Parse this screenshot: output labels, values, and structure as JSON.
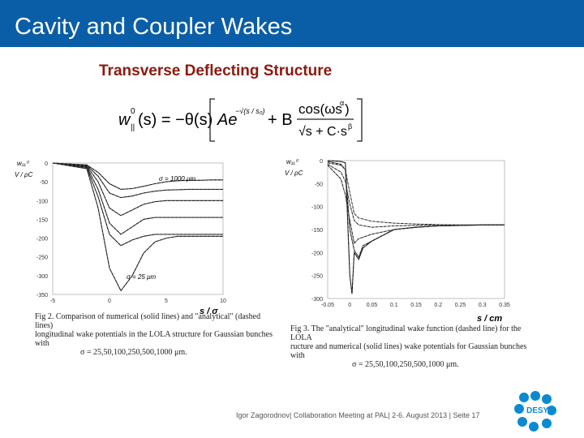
{
  "slide": {
    "title": "Cavity and Coupler Wakes",
    "subtitle": "Transverse Deflecting Structure",
    "formula": {
      "lhs": "w",
      "lhs_sup": "0",
      "lhs_sub": "||",
      "lhs_arg": "(s) = −θ(s)",
      "term1": "Ae",
      "term1_exp": "−√(s / s₀)",
      "plus": "+ B",
      "num": "cos(ωs",
      "num_exp": "α",
      "num_close": ")",
      "den": "√s + C·s",
      "den_exp": "β"
    },
    "footer": "Igor Zagorodnov| Collaboration Meeting at PAL| 2-6. August 2013  |  Seite 17",
    "logo_text": "DESY",
    "colors": {
      "title_bar": "#0a5ea8",
      "subtitle": "#8b1a10",
      "logo": "#0a8ad0"
    }
  },
  "figures": [
    {
      "ylabel_top": "w₁₁⁰",
      "ylabel_bottom": "V / ρC",
      "xlabel": "s / σ",
      "y_ticks": [
        "0",
        "-50",
        "-100",
        "-150",
        "-200",
        "-250",
        "-300",
        "-350"
      ],
      "x_ticks": [
        "-5",
        "0",
        "5",
        "10"
      ],
      "annotations": {
        "top": "σ = 1000 μm",
        "bottom": "σ = 25 μm"
      },
      "caption_lines": [
        "Fig 2. Comparison of numerical (solid lines) and \"analytical\" (dashed lines)",
        "longitudinal wake potentials in the LOLA structure for Gaussian bunches with",
        "σ = 25,50,100,250,500,1000 μm."
      ]
    },
    {
      "ylabel_top": "w₁₁⁰",
      "ylabel_bottom": "V / ρC",
      "xlabel": "s / cm",
      "y_ticks": [
        "0",
        "-50",
        "-100",
        "-150",
        "-200",
        "-250",
        "-300"
      ],
      "x_ticks": [
        "-0.05",
        "0",
        "0.05",
        "0.1",
        "0.15",
        "0.2",
        "0.25",
        "0.3",
        "0.35"
      ],
      "caption_lines": [
        "Fig 3. The \"analytical\" longitudinal wake function (dashed line) for the LOLA",
        "ructure and numerical (solid lines) wake potentials for Gaussian bunches with",
        "σ = 25,50,100,250,500,1000 μm."
      ]
    }
  ],
  "chart_data": [
    {
      "type": "line",
      "xlabel": "s / σ",
      "ylabel": "w₁₁⁰ V / ρC",
      "xlim": [
        -5,
        10
      ],
      "ylim": [
        -350,
        0
      ],
      "series": [
        {
          "name": "σ = 1000 μm",
          "x": [
            -5,
            -2,
            -1,
            0,
            1,
            2,
            3,
            4,
            5,
            6,
            7,
            8,
            9,
            10
          ],
          "values": [
            0,
            -5,
            -25,
            -55,
            -70,
            -68,
            -62,
            -55,
            -50,
            -47,
            -46,
            -46,
            -45,
            -45
          ]
        },
        {
          "x": [
            -5,
            -2,
            -1,
            0,
            1,
            2,
            3,
            4,
            5,
            6,
            7,
            8,
            9,
            10
          ],
          "values": [
            0,
            -6,
            -35,
            -80,
            -92,
            -88,
            -80,
            -75,
            -72,
            -71,
            -70,
            -70,
            -70,
            -70
          ]
        },
        {
          "x": [
            -5,
            -2,
            -1,
            0,
            1,
            2,
            3,
            4,
            5,
            6,
            7,
            8,
            9,
            10
          ],
          "values": [
            0,
            -8,
            -50,
            -120,
            -140,
            -125,
            -110,
            -103,
            -100,
            -100,
            -100,
            -100,
            -100,
            -100
          ]
        },
        {
          "x": [
            -5,
            -2,
            -1,
            0,
            1,
            2,
            3,
            4,
            5,
            6,
            7,
            8,
            9,
            10
          ],
          "values": [
            0,
            -10,
            -70,
            -160,
            -190,
            -170,
            -150,
            -145,
            -145,
            -145,
            -145,
            -145,
            -145,
            -145
          ]
        },
        {
          "x": [
            -5,
            -2,
            -1,
            0,
            1,
            2,
            3,
            4,
            5,
            6,
            7,
            8,
            9,
            10
          ],
          "values": [
            0,
            -12,
            -90,
            -190,
            -220,
            -205,
            -195,
            -190,
            -190,
            -190,
            -190,
            -190,
            -190,
            -190
          ]
        },
        {
          "name": "σ = 25 μm",
          "x": [
            -5,
            -2,
            -1,
            0,
            1,
            2,
            3,
            4,
            5,
            6,
            7,
            8,
            9,
            10
          ],
          "values": [
            0,
            -15,
            -120,
            -280,
            -340,
            -300,
            -240,
            -210,
            -200,
            -195,
            -195,
            -195,
            -195,
            -195
          ]
        }
      ]
    },
    {
      "type": "line",
      "xlabel": "s / cm",
      "ylabel": "w₁₁⁰ V / ρC",
      "xlim": [
        -0.05,
        0.35
      ],
      "ylim": [
        -300,
        0
      ],
      "series": [
        {
          "x": [
            -0.05,
            -0.02,
            -0.01,
            0,
            0.01,
            0.02,
            0.05,
            0.1,
            0.15,
            0.2,
            0.25,
            0.3,
            0.35
          ],
          "values": [
            -5,
            -10,
            -20,
            -70,
            -115,
            -125,
            -132,
            -136,
            -138,
            -139,
            -140,
            -140,
            -140
          ]
        },
        {
          "x": [
            -0.05,
            -0.02,
            -0.01,
            0,
            0.01,
            0.02,
            0.05,
            0.1,
            0.15,
            0.2,
            0.25,
            0.3,
            0.35
          ],
          "values": [
            -8,
            -25,
            -45,
            -95,
            -130,
            -140,
            -145,
            -142,
            -141,
            -140,
            -140,
            -140,
            -140
          ]
        },
        {
          "x": [
            -0.05,
            -0.02,
            -0.01,
            0,
            0.01,
            0.02,
            0.05,
            0.1,
            0.15,
            0.2,
            0.25,
            0.3,
            0.35
          ],
          "values": [
            -10,
            -40,
            -75,
            -130,
            -180,
            -170,
            -160,
            -150,
            -145,
            -142,
            -141,
            -140,
            -140
          ]
        },
        {
          "x": [
            -0.05,
            -0.02,
            -0.01,
            0,
            0.01,
            0.02,
            0.03,
            0.05,
            0.1,
            0.15,
            0.2,
            0.25,
            0.3,
            0.35
          ],
          "values": [
            -2,
            -8,
            -20,
            -150,
            -195,
            -210,
            -185,
            -175,
            -150,
            -145,
            -142,
            -141,
            -140,
            -140
          ]
        },
        {
          "x": [
            -0.05,
            -0.02,
            -0.01,
            0,
            0.005,
            0.01,
            0.02,
            0.03,
            0.05,
            0.1,
            0.15,
            0.2,
            0.25,
            0.3,
            0.35
          ],
          "values": [
            0,
            -2,
            -5,
            -250,
            -290,
            -200,
            -215,
            -190,
            -175,
            -150,
            -145,
            -142,
            -141,
            -140,
            -140
          ]
        }
      ]
    }
  ]
}
